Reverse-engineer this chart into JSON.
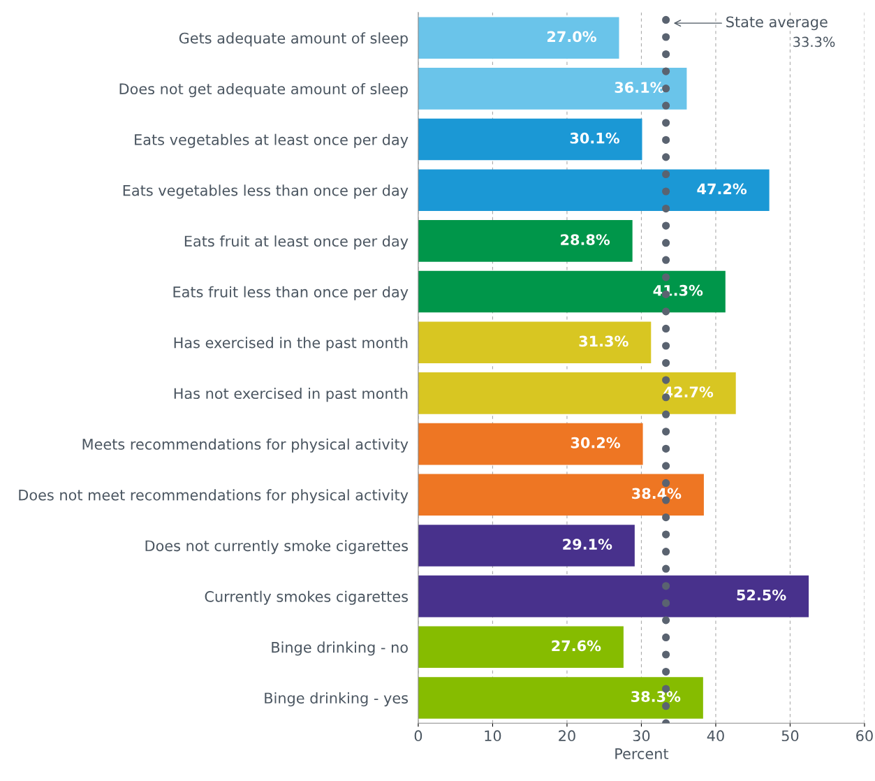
{
  "chart_data": {
    "type": "bar",
    "orientation": "horizontal",
    "xlabel": "Percent",
    "categories": [
      "Gets adequate amount of sleep",
      "Does not get adequate amount of sleep",
      "Eats vegetables at least once per day",
      "Eats vegetables less than once per day",
      "Eats fruit at least once per day",
      "Eats fruit less than once per day",
      "Has exercised in the past month",
      "Has not exercised in past month",
      "Meets recommendations for physical activity",
      "Does not meet recommendations for physical activity",
      "Does not currently smoke cigarettes",
      "Currently smokes cigarettes",
      "Binge drinking - no",
      "Binge drinking - yes"
    ],
    "values": [
      27.0,
      36.1,
      30.1,
      47.2,
      28.8,
      41.3,
      31.3,
      42.7,
      30.2,
      38.4,
      29.1,
      52.5,
      27.6,
      38.3
    ],
    "value_labels": [
      "27.0%",
      "36.1%",
      "30.1%",
      "47.2%",
      "28.8%",
      "41.3%",
      "31.3%",
      "42.7%",
      "30.2%",
      "38.4%",
      "29.1%",
      "52.5%",
      "27.6%",
      "38.3%"
    ],
    "colors": [
      "#6ac4ea",
      "#6ac4ea",
      "#1b98d5",
      "#1b98d5",
      "#00964a",
      "#00964a",
      "#d8c622",
      "#d8c622",
      "#ee7623",
      "#ee7623",
      "#48318c",
      "#48318c",
      "#86bc00",
      "#86bc00"
    ],
    "xlim": [
      0,
      60
    ],
    "xticks": [
      0,
      10,
      20,
      30,
      40,
      50,
      60
    ],
    "grid": "x",
    "ref_lines": [
      {
        "axis": "x",
        "value": 33.3,
        "label": "State average",
        "color": "#5a6370",
        "line_style": "dotted"
      }
    ],
    "annotations": [
      "33.3%"
    ]
  }
}
